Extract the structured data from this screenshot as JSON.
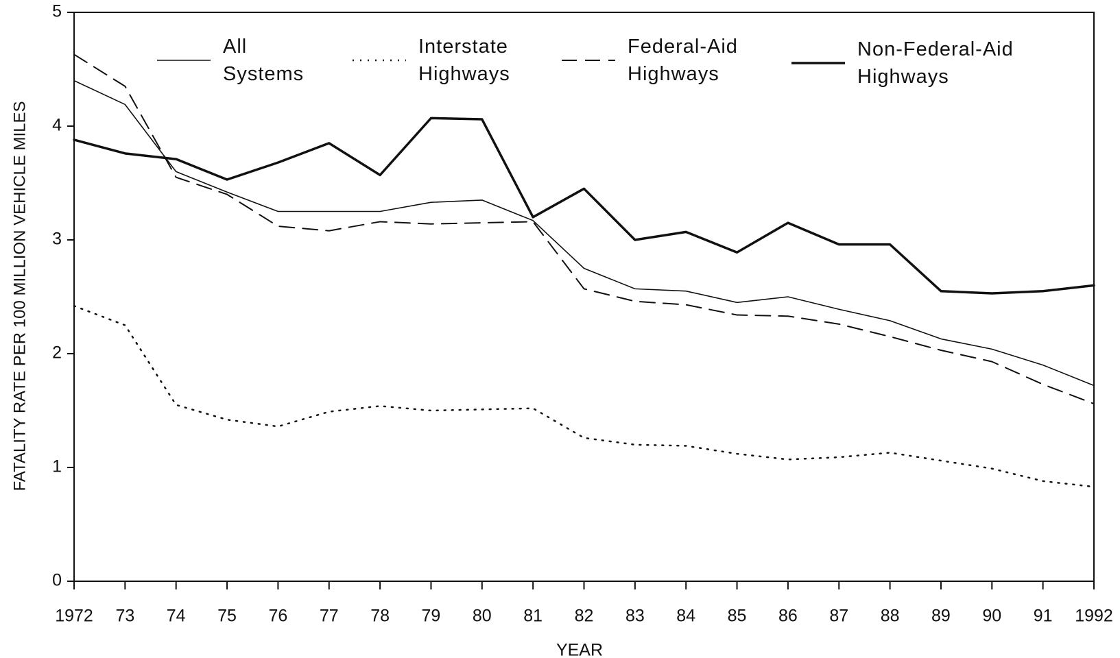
{
  "chart_data": {
    "type": "line",
    "xlabel": "YEAR",
    "ylabel": "FATALITY RATE PER 100 MILLION VEHICLE MILES",
    "categories": [
      "1972",
      "73",
      "74",
      "75",
      "76",
      "77",
      "78",
      "79",
      "80",
      "81",
      "82",
      "83",
      "84",
      "85",
      "86",
      "87",
      "88",
      "89",
      "90",
      "91",
      "1992"
    ],
    "ylim": [
      0,
      5
    ],
    "yticks": [
      0,
      1,
      2,
      3,
      4,
      5
    ],
    "grid": false,
    "series": [
      {
        "name": "All Systems",
        "color": "#111111",
        "line_style": "solid",
        "line_width": 1.6,
        "values": [
          4.4,
          4.19,
          3.6,
          3.42,
          3.25,
          3.25,
          3.25,
          3.33,
          3.35,
          3.17,
          2.75,
          2.57,
          2.55,
          2.45,
          2.5,
          2.39,
          2.29,
          2.13,
          2.04,
          1.9,
          1.72
        ]
      },
      {
        "name": "Interstate Highways",
        "color": "#111111",
        "line_style": "dotted",
        "line_width": 2.5,
        "values": [
          2.42,
          2.25,
          1.55,
          1.42,
          1.36,
          1.49,
          1.54,
          1.5,
          1.51,
          1.52,
          1.26,
          1.2,
          1.19,
          1.12,
          1.07,
          1.09,
          1.13,
          1.06,
          0.99,
          0.88,
          0.83
        ]
      },
      {
        "name": "Federal-Aid Highways",
        "color": "#111111",
        "line_style": "dashed",
        "line_width": 2,
        "values": [
          4.63,
          4.35,
          3.55,
          3.4,
          3.12,
          3.08,
          3.16,
          3.14,
          3.15,
          3.16,
          2.57,
          2.46,
          2.43,
          2.34,
          2.33,
          2.26,
          2.15,
          2.03,
          1.93,
          1.73,
          1.56
        ]
      },
      {
        "name": "Non-Federal-Aid Highways",
        "color": "#111111",
        "line_style": "solid",
        "line_width": 3.5,
        "values": [
          3.88,
          3.76,
          3.71,
          3.53,
          3.68,
          3.85,
          3.57,
          4.07,
          4.06,
          3.2,
          3.45,
          3.0,
          3.07,
          2.89,
          3.15,
          2.96,
          2.96,
          2.55,
          2.53,
          2.55,
          2.6
        ]
      }
    ]
  }
}
